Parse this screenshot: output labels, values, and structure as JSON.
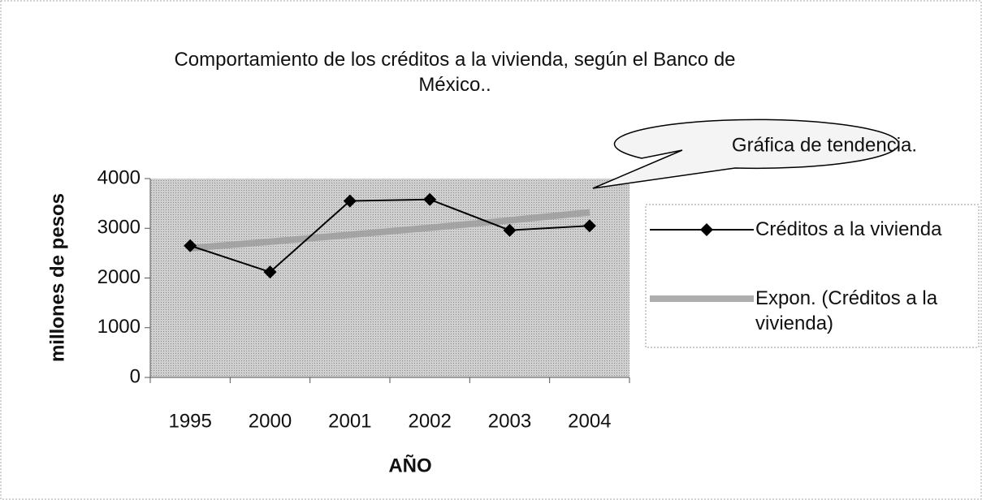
{
  "chart_data": {
    "type": "line",
    "title": "Comportamiento de los créditos  a la vivienda, según el Banco de México..",
    "annotation": "Gráfica de tendencia.",
    "x_label": "AÑO",
    "y_label": "millones de pesos",
    "categories": [
      "1995",
      "2000",
      "2001",
      "2002",
      "2003",
      "2004"
    ],
    "series": [
      {
        "name": "Créditos a la vivienda",
        "color": "#000000",
        "values": [
          2650,
          2120,
          3550,
          3580,
          2960,
          3050
        ]
      },
      {
        "name": "Expon. (Créditos a la vivienda)",
        "color": "#9a9a9a",
        "values": [
          2600,
          2730,
          2870,
          3010,
          3160,
          3320
        ]
      }
    ],
    "ylim": [
      0,
      4000
    ],
    "yticks": [
      0,
      1000,
      2000,
      3000,
      4000
    ],
    "legend": "right"
  }
}
